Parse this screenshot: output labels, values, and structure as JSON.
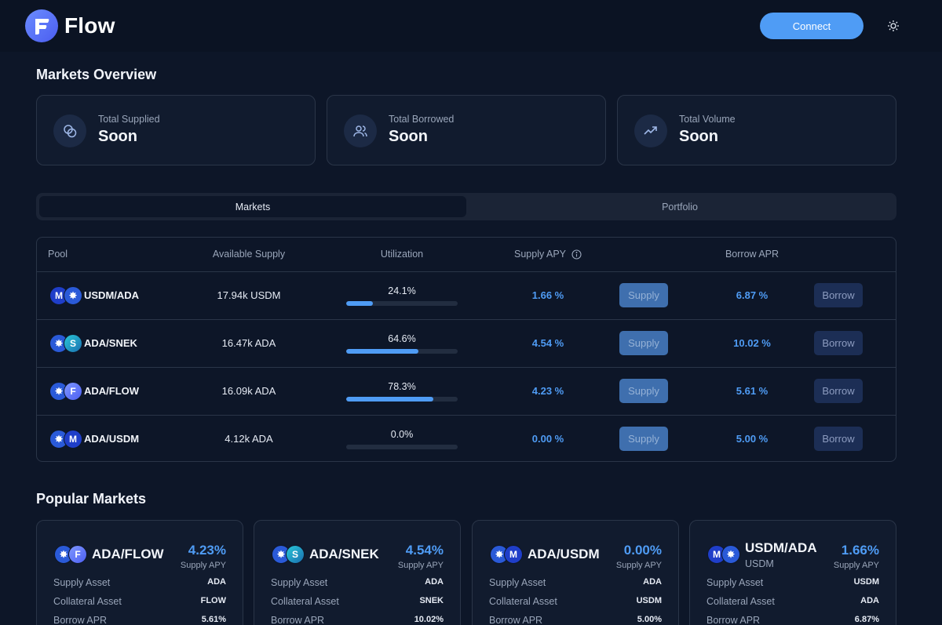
{
  "header": {
    "brand": "Flow",
    "connect_label": "Connect"
  },
  "overview": {
    "title": "Markets Overview",
    "cards": [
      {
        "label": "Total Supplied",
        "value": "Soon",
        "icon": "coins-icon"
      },
      {
        "label": "Total Borrowed",
        "value": "Soon",
        "icon": "users-icon"
      },
      {
        "label": "Total Volume",
        "value": "Soon",
        "icon": "trending-up-icon"
      }
    ]
  },
  "tabs": [
    "Markets",
    "Portfolio"
  ],
  "table": {
    "headers": {
      "pool": "Pool",
      "available": "Available Supply",
      "utilization": "Utilization",
      "supply_apy": "Supply APY",
      "borrow_apr": "Borrow APR"
    },
    "supply_label": "Supply",
    "borrow_label": "Borrow",
    "rows": [
      {
        "pair": "USDM/ADA",
        "coins": [
          "usdm",
          "ada"
        ],
        "available": "17.94k USDM",
        "utilization": "24.1%",
        "util_fraction": 0.241,
        "supply_apy": "1.66 %",
        "borrow_apr": "6.87 %"
      },
      {
        "pair": "ADA/SNEK",
        "coins": [
          "ada",
          "snek"
        ],
        "available": "16.47k ADA",
        "utilization": "64.6%",
        "util_fraction": 0.646,
        "supply_apy": "4.54 %",
        "borrow_apr": "10.02 %"
      },
      {
        "pair": "ADA/FLOW",
        "coins": [
          "ada",
          "flow"
        ],
        "available": "16.09k ADA",
        "utilization": "78.3%",
        "util_fraction": 0.783,
        "supply_apy": "4.23 %",
        "borrow_apr": "5.61 %"
      },
      {
        "pair": "ADA/USDM",
        "coins": [
          "ada",
          "usdm"
        ],
        "available": "4.12k ADA",
        "utilization": "0.0%",
        "util_fraction": 0.0,
        "supply_apy": "0.00 %",
        "borrow_apr": "5.00 %"
      }
    ]
  },
  "popular": {
    "title": "Popular Markets",
    "apy_label": "Supply APY",
    "labels": {
      "supply_asset": "Supply Asset",
      "collateral_asset": "Collateral Asset",
      "borrow_apr": "Borrow APR"
    },
    "cards": [
      {
        "pair": "ADA/FLOW",
        "sub": "",
        "coins": [
          "ada",
          "flow"
        ],
        "apy": "4.23%",
        "supply_asset": "ADA",
        "collateral_asset": "FLOW",
        "borrow_apr": "5.61%"
      },
      {
        "pair": "ADA/SNEK",
        "sub": "",
        "coins": [
          "ada",
          "snek"
        ],
        "apy": "4.54%",
        "supply_asset": "ADA",
        "collateral_asset": "SNEK",
        "borrow_apr": "10.02%"
      },
      {
        "pair": "ADA/USDM",
        "sub": "",
        "coins": [
          "ada",
          "usdm"
        ],
        "apy": "0.00%",
        "supply_asset": "ADA",
        "collateral_asset": "USDM",
        "borrow_apr": "5.00%"
      },
      {
        "pair": "USDM/ADA",
        "sub": "USDM",
        "coins": [
          "usdm",
          "ada"
        ],
        "apy": "1.66%",
        "supply_asset": "USDM",
        "collateral_asset": "ADA",
        "borrow_apr": "6.87%"
      }
    ]
  },
  "colors": {
    "accent": "#4f9cf5",
    "background": "#0d1628"
  }
}
